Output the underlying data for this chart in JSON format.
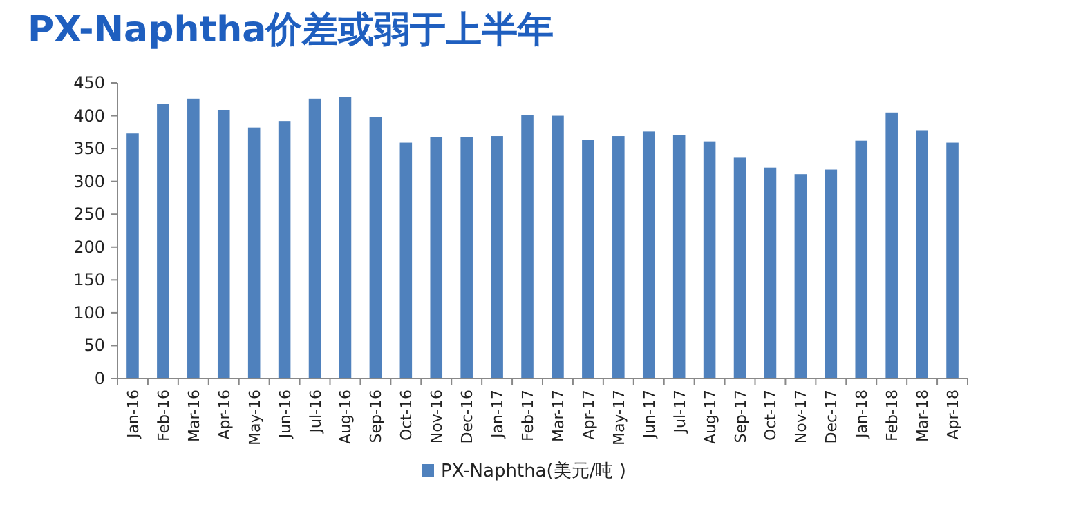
{
  "chart_data": {
    "type": "bar",
    "title": "PX-Naphtha价差或弱于上半年",
    "categories": [
      "Jan-16",
      "Feb-16",
      "Mar-16",
      "Apr-16",
      "May-16",
      "Jun-16",
      "Jul-16",
      "Aug-16",
      "Sep-16",
      "Oct-16",
      "Nov-16",
      "Dec-16",
      "Jan-17",
      "Feb-17",
      "Mar-17",
      "Apr-17",
      "May-17",
      "Jun-17",
      "Jul-17",
      "Aug-17",
      "Sep-17",
      "Oct-17",
      "Nov-17",
      "Dec-17",
      "Jan-18",
      "Feb-18",
      "Mar-18",
      "Apr-18"
    ],
    "series": [
      {
        "name": "PX-Naphtha(美元/吨 )",
        "color": "#4f81bd",
        "values": [
          373,
          418,
          426,
          409,
          382,
          392,
          426,
          428,
          398,
          359,
          367,
          367,
          369,
          401,
          400,
          363,
          369,
          376,
          371,
          361,
          336,
          321,
          311,
          318,
          362,
          405,
          378,
          359
        ]
      }
    ],
    "ylim": [
      0,
      450
    ],
    "yticks": [
      0,
      50,
      100,
      150,
      200,
      250,
      300,
      350,
      400,
      450
    ],
    "grid": false,
    "legend": "bottom"
  }
}
